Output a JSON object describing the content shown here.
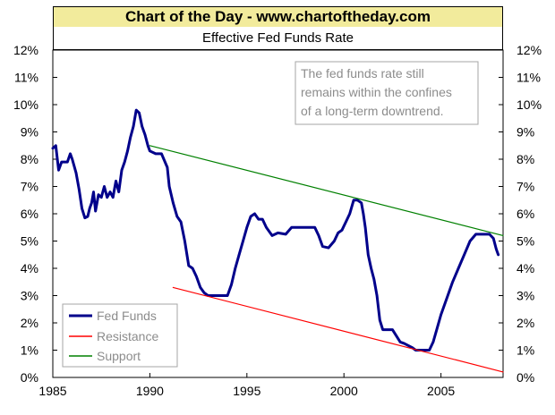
{
  "banner": "Chart of the Day - www.chartoftheday.com",
  "chart_data": {
    "type": "line",
    "title": "Effective Fed Funds Rate",
    "xlim": [
      1985,
      2008.2
    ],
    "ylim": [
      0,
      12
    ],
    "x_ticks": [
      1985,
      1990,
      1995,
      2000,
      2005
    ],
    "y_ticks": [
      "0%",
      "1%",
      "2%",
      "3%",
      "4%",
      "5%",
      "6%",
      "7%",
      "8%",
      "9%",
      "10%",
      "11%",
      "12%"
    ],
    "y_axis_both_sides": true,
    "grid": false,
    "annotation": [
      "The fed funds rate still",
      "remains within the confines",
      "of a long-term downtrend."
    ],
    "legend_position": "bottom-left",
    "series": [
      {
        "name": "Fed Funds",
        "color": "#00008b",
        "points": [
          [
            1985.0,
            8.4
          ],
          [
            1985.15,
            8.5
          ],
          [
            1985.3,
            7.6
          ],
          [
            1985.45,
            7.9
          ],
          [
            1985.6,
            7.9
          ],
          [
            1985.75,
            7.9
          ],
          [
            1985.9,
            8.2
          ],
          [
            1986.0,
            8.0
          ],
          [
            1986.2,
            7.5
          ],
          [
            1986.35,
            6.9
          ],
          [
            1986.5,
            6.2
          ],
          [
            1986.65,
            5.85
          ],
          [
            1986.8,
            5.9
          ],
          [
            1986.9,
            6.2
          ],
          [
            1987.0,
            6.4
          ],
          [
            1987.1,
            6.8
          ],
          [
            1987.2,
            6.1
          ],
          [
            1987.35,
            6.7
          ],
          [
            1987.5,
            6.6
          ],
          [
            1987.65,
            7.0
          ],
          [
            1987.8,
            6.6
          ],
          [
            1987.95,
            6.8
          ],
          [
            1988.1,
            6.6
          ],
          [
            1988.25,
            7.2
          ],
          [
            1988.4,
            6.8
          ],
          [
            1988.55,
            7.6
          ],
          [
            1988.7,
            7.9
          ],
          [
            1988.85,
            8.3
          ],
          [
            1989.0,
            8.8
          ],
          [
            1989.15,
            9.2
          ],
          [
            1989.3,
            9.8
          ],
          [
            1989.45,
            9.7
          ],
          [
            1989.6,
            9.2
          ],
          [
            1989.75,
            8.9
          ],
          [
            1989.9,
            8.5
          ],
          [
            1990.0,
            8.3
          ],
          [
            1990.3,
            8.2
          ],
          [
            1990.6,
            8.2
          ],
          [
            1990.9,
            7.7
          ],
          [
            1991.0,
            7.0
          ],
          [
            1991.2,
            6.4
          ],
          [
            1991.4,
            5.9
          ],
          [
            1991.6,
            5.7
          ],
          [
            1991.8,
            5.0
          ],
          [
            1992.0,
            4.1
          ],
          [
            1992.2,
            4.0
          ],
          [
            1992.4,
            3.7
          ],
          [
            1992.6,
            3.3
          ],
          [
            1992.8,
            3.1
          ],
          [
            1993.0,
            3.0
          ],
          [
            1993.5,
            3.0
          ],
          [
            1994.0,
            3.0
          ],
          [
            1994.2,
            3.4
          ],
          [
            1994.4,
            4.0
          ],
          [
            1994.6,
            4.5
          ],
          [
            1994.8,
            5.0
          ],
          [
            1995.0,
            5.5
          ],
          [
            1995.2,
            5.9
          ],
          [
            1995.4,
            6.0
          ],
          [
            1995.6,
            5.8
          ],
          [
            1995.8,
            5.8
          ],
          [
            1996.0,
            5.5
          ],
          [
            1996.3,
            5.2
          ],
          [
            1996.6,
            5.3
          ],
          [
            1997.0,
            5.25
          ],
          [
            1997.3,
            5.5
          ],
          [
            1997.6,
            5.5
          ],
          [
            1998.0,
            5.5
          ],
          [
            1998.3,
            5.5
          ],
          [
            1998.5,
            5.5
          ],
          [
            1998.7,
            5.2
          ],
          [
            1998.9,
            4.8
          ],
          [
            1999.2,
            4.75
          ],
          [
            1999.5,
            5.0
          ],
          [
            1999.7,
            5.3
          ],
          [
            1999.9,
            5.4
          ],
          [
            2000.1,
            5.7
          ],
          [
            2000.3,
            6.0
          ],
          [
            2000.5,
            6.5
          ],
          [
            2000.7,
            6.5
          ],
          [
            2000.9,
            6.4
          ],
          [
            2001.0,
            6.0
          ],
          [
            2001.1,
            5.5
          ],
          [
            2001.25,
            4.5
          ],
          [
            2001.4,
            4.0
          ],
          [
            2001.55,
            3.6
          ],
          [
            2001.7,
            3.0
          ],
          [
            2001.85,
            2.1
          ],
          [
            2002.0,
            1.75
          ],
          [
            2002.5,
            1.75
          ],
          [
            2002.9,
            1.3
          ],
          [
            2003.1,
            1.25
          ],
          [
            2003.5,
            1.1
          ],
          [
            2003.7,
            1.0
          ],
          [
            2004.0,
            1.0
          ],
          [
            2004.4,
            1.0
          ],
          [
            2004.6,
            1.3
          ],
          [
            2004.8,
            1.8
          ],
          [
            2005.0,
            2.3
          ],
          [
            2005.3,
            2.9
          ],
          [
            2005.6,
            3.5
          ],
          [
            2005.9,
            4.0
          ],
          [
            2006.2,
            4.5
          ],
          [
            2006.5,
            5.0
          ],
          [
            2006.8,
            5.25
          ],
          [
            2007.5,
            5.25
          ],
          [
            2007.7,
            5.1
          ],
          [
            2007.85,
            4.7
          ],
          [
            2007.95,
            4.5
          ]
        ]
      },
      {
        "name": "Resistance",
        "color": "#ff0000",
        "points": [
          [
            1991.2,
            3.3
          ],
          [
            2008.2,
            0.2
          ]
        ]
      },
      {
        "name": "Support",
        "color": "#008000",
        "points": [
          [
            1990.0,
            8.5
          ],
          [
            2008.2,
            5.2
          ]
        ]
      }
    ]
  }
}
